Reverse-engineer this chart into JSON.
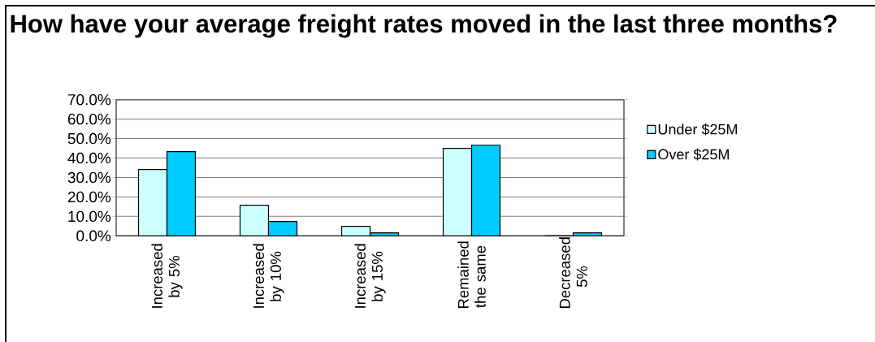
{
  "chart_data": {
    "type": "bar",
    "title": "How have your average freight rates moved in the last three months?",
    "categories": [
      "Increased by 5%",
      "Increased by 10%",
      "Increased by 15%",
      "Remained the same",
      "Decreased 5%"
    ],
    "series": [
      {
        "name": "Under $25M",
        "color": "#ccffff",
        "values": [
          34.1,
          15.7,
          4.9,
          45.0,
          0
        ]
      },
      {
        "name": "Over $25M",
        "color": "#00ccff",
        "values": [
          43.3,
          7.4,
          1.5,
          46.6,
          1.5
        ]
      }
    ],
    "ylim": [
      0,
      70
    ],
    "yticks": [
      {
        "value": 0,
        "label": "0.0%"
      },
      {
        "value": 10,
        "label": "10.0%"
      },
      {
        "value": 20,
        "label": "20.0%"
      },
      {
        "value": 30,
        "label": "30.0%"
      },
      {
        "value": 40,
        "label": "40.0%"
      },
      {
        "value": 50,
        "label": "50.0%"
      },
      {
        "value": 60,
        "label": "60.0%"
      },
      {
        "value": 70,
        "label": "70.0%"
      }
    ],
    "grid": "y",
    "legend": "right"
  }
}
